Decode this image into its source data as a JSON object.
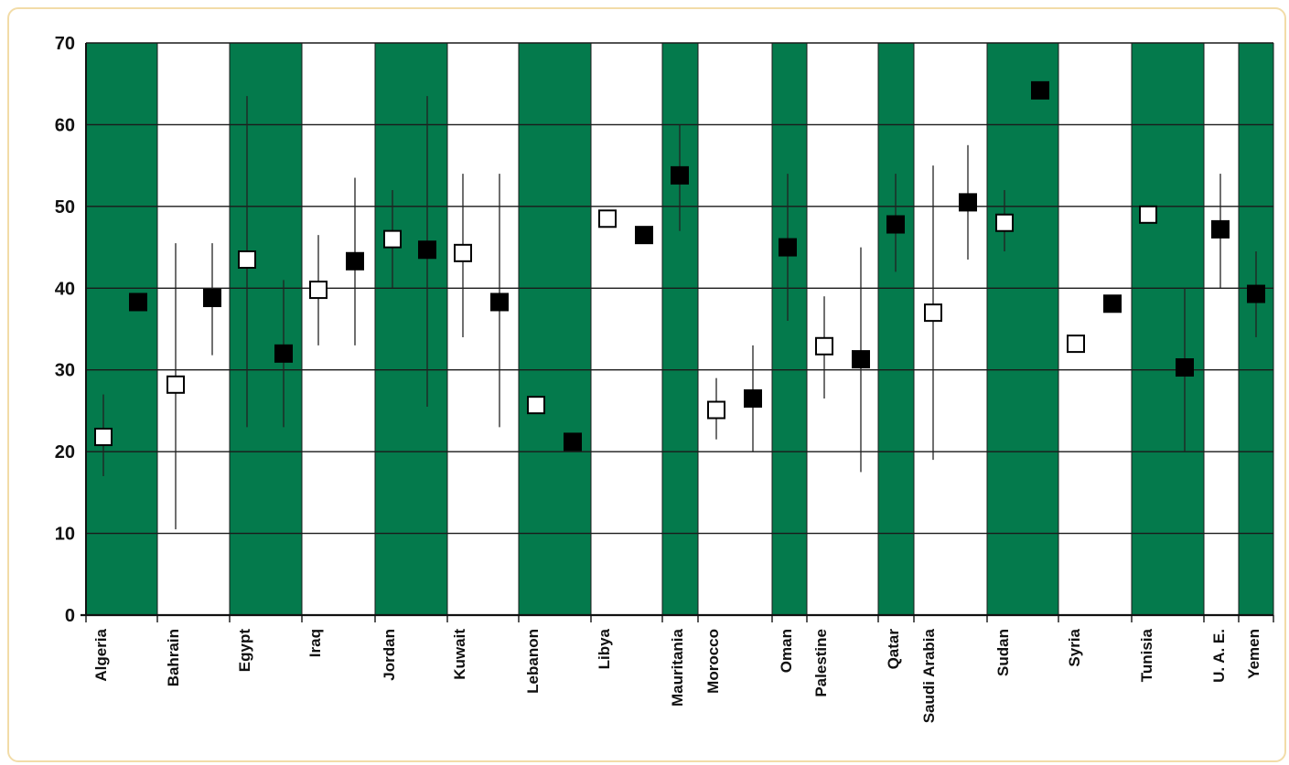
{
  "chart_data": {
    "type": "scatter",
    "title": "",
    "xlabel": "",
    "ylabel": "",
    "ylim": [
      0,
      70
    ],
    "yticks": [
      0,
      10,
      20,
      30,
      40,
      50,
      60,
      70
    ],
    "grid": true,
    "legend": "none",
    "band_colors": {
      "green": "#047a4c",
      "white": "#ffffff"
    },
    "marker_colors": {
      "open": "#ffffff",
      "filled": "#000000"
    },
    "countries": [
      {
        "name": "Algeria",
        "band": "green",
        "points": [
          {
            "fill": "open",
            "value": 21.8,
            "low": 17,
            "high": 27
          },
          {
            "fill": "filled",
            "value": 38.3
          }
        ]
      },
      {
        "name": "Bahrain",
        "band": "white",
        "points": [
          {
            "fill": "open",
            "value": 28.2,
            "low": 10.5,
            "high": 45.5
          },
          {
            "fill": "filled",
            "value": 38.8,
            "low": 31.8,
            "high": 45.5
          }
        ]
      },
      {
        "name": "Egypt",
        "band": "green",
        "points": [
          {
            "fill": "open",
            "value": 43.5,
            "low": 23,
            "high": 63.5
          },
          {
            "fill": "filled",
            "value": 32,
            "low": 23,
            "high": 41
          }
        ]
      },
      {
        "name": "Iraq",
        "band": "white",
        "points": [
          {
            "fill": "open",
            "value": 39.8,
            "low": 33,
            "high": 46.5
          },
          {
            "fill": "filled",
            "value": 43.3,
            "low": 33,
            "high": 53.5
          }
        ]
      },
      {
        "name": "Jordan",
        "band": "green",
        "points": [
          {
            "fill": "open",
            "value": 46,
            "low": 40,
            "high": 52
          },
          {
            "fill": "filled",
            "value": 44.7,
            "low": 25.5,
            "high": 63.5
          }
        ]
      },
      {
        "name": "Kuwait",
        "band": "white",
        "points": [
          {
            "fill": "open",
            "value": 44.3,
            "low": 34,
            "high": 54
          },
          {
            "fill": "filled",
            "value": 38.3,
            "low": 23,
            "high": 54
          }
        ]
      },
      {
        "name": "Lebanon",
        "band": "green",
        "points": [
          {
            "fill": "open",
            "value": 25.7
          },
          {
            "fill": "filled",
            "value": 21.2
          }
        ]
      },
      {
        "name": "Libya",
        "band": "white",
        "points": [
          {
            "fill": "open",
            "value": 48.5
          },
          {
            "fill": "filled",
            "value": 46.5
          }
        ]
      },
      {
        "name": "Mauritania",
        "band": "green",
        "points": [
          {
            "fill": "filled",
            "value": 53.8,
            "low": 47,
            "high": 60
          }
        ]
      },
      {
        "name": "Morocco",
        "band": "white",
        "points": [
          {
            "fill": "open",
            "value": 25.1,
            "low": 21.5,
            "high": 29
          },
          {
            "fill": "filled",
            "value": 26.5,
            "low": 20,
            "high": 33
          }
        ]
      },
      {
        "name": "Oman",
        "band": "green",
        "points": [
          {
            "fill": "filled",
            "value": 45,
            "low": 36,
            "high": 54
          }
        ]
      },
      {
        "name": "Palestine",
        "band": "white",
        "points": [
          {
            "fill": "open",
            "value": 32.9,
            "low": 26.5,
            "high": 39
          },
          {
            "fill": "filled",
            "value": 31.3,
            "low": 17.5,
            "high": 45
          }
        ]
      },
      {
        "name": "Qatar",
        "band": "green",
        "points": [
          {
            "fill": "filled",
            "value": 47.8,
            "low": 42,
            "high": 54
          }
        ]
      },
      {
        "name": "Saudi Arabia",
        "band": "white",
        "points": [
          {
            "fill": "open",
            "value": 37,
            "low": 19,
            "high": 55
          },
          {
            "fill": "filled",
            "value": 50.5,
            "low": 43.5,
            "high": 57.5
          }
        ]
      },
      {
        "name": "Sudan",
        "band": "green",
        "points": [
          {
            "fill": "open",
            "value": 48,
            "low": 44.5,
            "high": 52
          },
          {
            "fill": "filled",
            "value": 64.2
          }
        ]
      },
      {
        "name": "Syria",
        "band": "white",
        "points": [
          {
            "fill": "open",
            "value": 33.2
          },
          {
            "fill": "filled",
            "value": 38.1
          }
        ]
      },
      {
        "name": "Tunisia",
        "band": "green",
        "points": [
          {
            "fill": "open",
            "value": 49
          },
          {
            "fill": "filled",
            "value": 30.3,
            "low": 20,
            "high": 40
          }
        ]
      },
      {
        "name": "U. A. E.",
        "band": "white",
        "points": [
          {
            "fill": "filled",
            "value": 47.2,
            "low": 40,
            "high": 54
          }
        ]
      },
      {
        "name": "Yemen",
        "band": "green",
        "points": [
          {
            "fill": "filled",
            "value": 39.3,
            "low": 34,
            "high": 44.5
          }
        ]
      }
    ]
  }
}
